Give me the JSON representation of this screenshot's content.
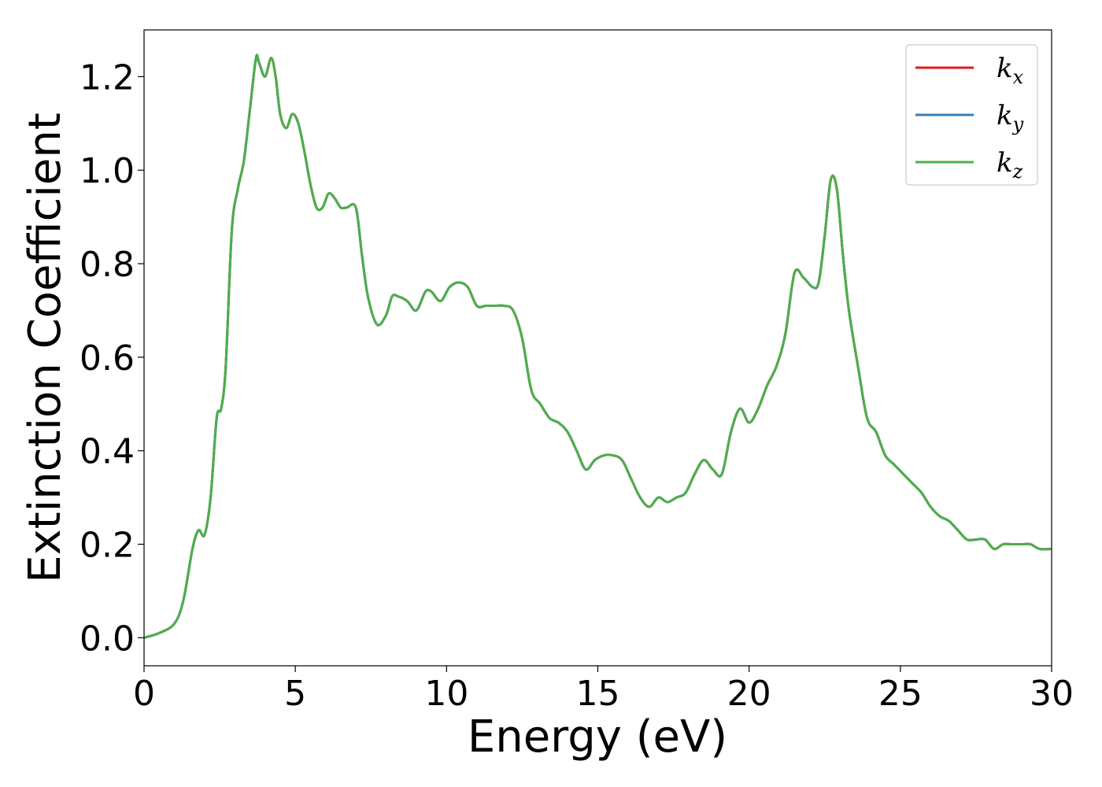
{
  "chart_data": {
    "type": "line",
    "title": "",
    "xlabel": "Energy (eV)",
    "ylabel": "Extinction Coefficient",
    "xlim": [
      0,
      30
    ],
    "ylim": [
      -0.06,
      1.3
    ],
    "xticks": [
      0,
      5,
      10,
      15,
      20,
      25,
      30
    ],
    "yticks": [
      0.0,
      0.2,
      0.4,
      0.6,
      0.8,
      1.0,
      1.2
    ],
    "grid": false,
    "legend_position": "top-right",
    "x": [
      0,
      0.5,
      1.0,
      1.3,
      1.6,
      1.8,
      2.0,
      2.2,
      2.4,
      2.55,
      2.7,
      2.9,
      3.1,
      3.3,
      3.5,
      3.7,
      3.8,
      4.0,
      4.2,
      4.35,
      4.5,
      4.7,
      4.9,
      5.1,
      5.3,
      5.5,
      5.7,
      5.9,
      6.1,
      6.3,
      6.5,
      6.7,
      7.0,
      7.2,
      7.4,
      7.7,
      8.0,
      8.2,
      8.4,
      8.7,
      9.0,
      9.3,
      9.5,
      9.8,
      10.1,
      10.4,
      10.7,
      11.0,
      11.3,
      11.6,
      11.9,
      12.2,
      12.5,
      12.8,
      13.1,
      13.4,
      13.7,
      14.0,
      14.3,
      14.6,
      14.9,
      15.2,
      15.5,
      15.8,
      16.1,
      16.4,
      16.7,
      17.0,
      17.3,
      17.6,
      17.9,
      18.2,
      18.5,
      18.8,
      19.1,
      19.4,
      19.7,
      20.0,
      20.3,
      20.6,
      20.9,
      21.2,
      21.5,
      21.8,
      22.1,
      22.3,
      22.5,
      22.7,
      22.9,
      23.1,
      23.3,
      23.6,
      23.9,
      24.2,
      24.5,
      24.8,
      25.1,
      25.4,
      25.7,
      26.0,
      26.3,
      26.6,
      26.9,
      27.2,
      27.5,
      27.8,
      28.1,
      28.4,
      28.7,
      29.0,
      29.3,
      29.6,
      30.0
    ],
    "series": [
      {
        "name": "k_x",
        "color": "#e41a1c",
        "values": [
          0.0,
          0.01,
          0.03,
          0.08,
          0.19,
          0.23,
          0.22,
          0.3,
          0.47,
          0.49,
          0.58,
          0.87,
          0.96,
          1.02,
          1.13,
          1.24,
          1.23,
          1.2,
          1.24,
          1.2,
          1.12,
          1.09,
          1.12,
          1.1,
          1.04,
          0.97,
          0.92,
          0.92,
          0.95,
          0.94,
          0.92,
          0.92,
          0.92,
          0.82,
          0.73,
          0.67,
          0.69,
          0.73,
          0.73,
          0.72,
          0.7,
          0.74,
          0.74,
          0.72,
          0.75,
          0.76,
          0.75,
          0.71,
          0.71,
          0.71,
          0.71,
          0.7,
          0.64,
          0.53,
          0.5,
          0.47,
          0.46,
          0.44,
          0.4,
          0.36,
          0.38,
          0.39,
          0.39,
          0.38,
          0.34,
          0.3,
          0.28,
          0.3,
          0.29,
          0.3,
          0.31,
          0.35,
          0.38,
          0.36,
          0.35,
          0.44,
          0.49,
          0.46,
          0.49,
          0.54,
          0.58,
          0.65,
          0.78,
          0.77,
          0.75,
          0.76,
          0.86,
          0.98,
          0.96,
          0.82,
          0.7,
          0.58,
          0.47,
          0.44,
          0.39,
          0.37,
          0.35,
          0.33,
          0.31,
          0.28,
          0.26,
          0.25,
          0.23,
          0.21,
          0.21,
          0.21,
          0.19,
          0.2,
          0.2,
          0.2,
          0.2,
          0.19,
          0.19
        ]
      },
      {
        "name": "k_y",
        "color": "#377eb8",
        "values": [
          0.0,
          0.01,
          0.03,
          0.08,
          0.19,
          0.23,
          0.22,
          0.3,
          0.47,
          0.49,
          0.58,
          0.87,
          0.96,
          1.02,
          1.13,
          1.24,
          1.23,
          1.2,
          1.24,
          1.2,
          1.12,
          1.09,
          1.12,
          1.1,
          1.04,
          0.97,
          0.92,
          0.92,
          0.95,
          0.94,
          0.92,
          0.92,
          0.92,
          0.82,
          0.73,
          0.67,
          0.69,
          0.73,
          0.73,
          0.72,
          0.7,
          0.74,
          0.74,
          0.72,
          0.75,
          0.76,
          0.75,
          0.71,
          0.71,
          0.71,
          0.71,
          0.7,
          0.64,
          0.53,
          0.5,
          0.47,
          0.46,
          0.44,
          0.4,
          0.36,
          0.38,
          0.39,
          0.39,
          0.38,
          0.34,
          0.3,
          0.28,
          0.3,
          0.29,
          0.3,
          0.31,
          0.35,
          0.38,
          0.36,
          0.35,
          0.44,
          0.49,
          0.46,
          0.49,
          0.54,
          0.58,
          0.65,
          0.78,
          0.77,
          0.75,
          0.76,
          0.86,
          0.98,
          0.96,
          0.82,
          0.7,
          0.58,
          0.47,
          0.44,
          0.39,
          0.37,
          0.35,
          0.33,
          0.31,
          0.28,
          0.26,
          0.25,
          0.23,
          0.21,
          0.21,
          0.21,
          0.19,
          0.2,
          0.2,
          0.2,
          0.2,
          0.19,
          0.19
        ]
      },
      {
        "name": "k_z",
        "color": "#4daf4a",
        "values": [
          0.0,
          0.01,
          0.03,
          0.08,
          0.19,
          0.23,
          0.22,
          0.3,
          0.47,
          0.49,
          0.58,
          0.87,
          0.96,
          1.02,
          1.13,
          1.24,
          1.23,
          1.2,
          1.24,
          1.2,
          1.12,
          1.09,
          1.12,
          1.1,
          1.04,
          0.97,
          0.92,
          0.92,
          0.95,
          0.94,
          0.92,
          0.92,
          0.92,
          0.82,
          0.73,
          0.67,
          0.69,
          0.73,
          0.73,
          0.72,
          0.7,
          0.74,
          0.74,
          0.72,
          0.75,
          0.76,
          0.75,
          0.71,
          0.71,
          0.71,
          0.71,
          0.7,
          0.64,
          0.53,
          0.5,
          0.47,
          0.46,
          0.44,
          0.4,
          0.36,
          0.38,
          0.39,
          0.39,
          0.38,
          0.34,
          0.3,
          0.28,
          0.3,
          0.29,
          0.3,
          0.31,
          0.35,
          0.38,
          0.36,
          0.35,
          0.44,
          0.49,
          0.46,
          0.49,
          0.54,
          0.58,
          0.65,
          0.78,
          0.77,
          0.75,
          0.76,
          0.86,
          0.98,
          0.96,
          0.82,
          0.7,
          0.58,
          0.47,
          0.44,
          0.39,
          0.37,
          0.35,
          0.33,
          0.31,
          0.28,
          0.26,
          0.25,
          0.23,
          0.21,
          0.21,
          0.21,
          0.19,
          0.2,
          0.2,
          0.2,
          0.2,
          0.19,
          0.19
        ]
      }
    ],
    "legend": [
      {
        "base": "k",
        "sub": "x"
      },
      {
        "base": "k",
        "sub": "y"
      },
      {
        "base": "k",
        "sub": "z"
      }
    ]
  }
}
